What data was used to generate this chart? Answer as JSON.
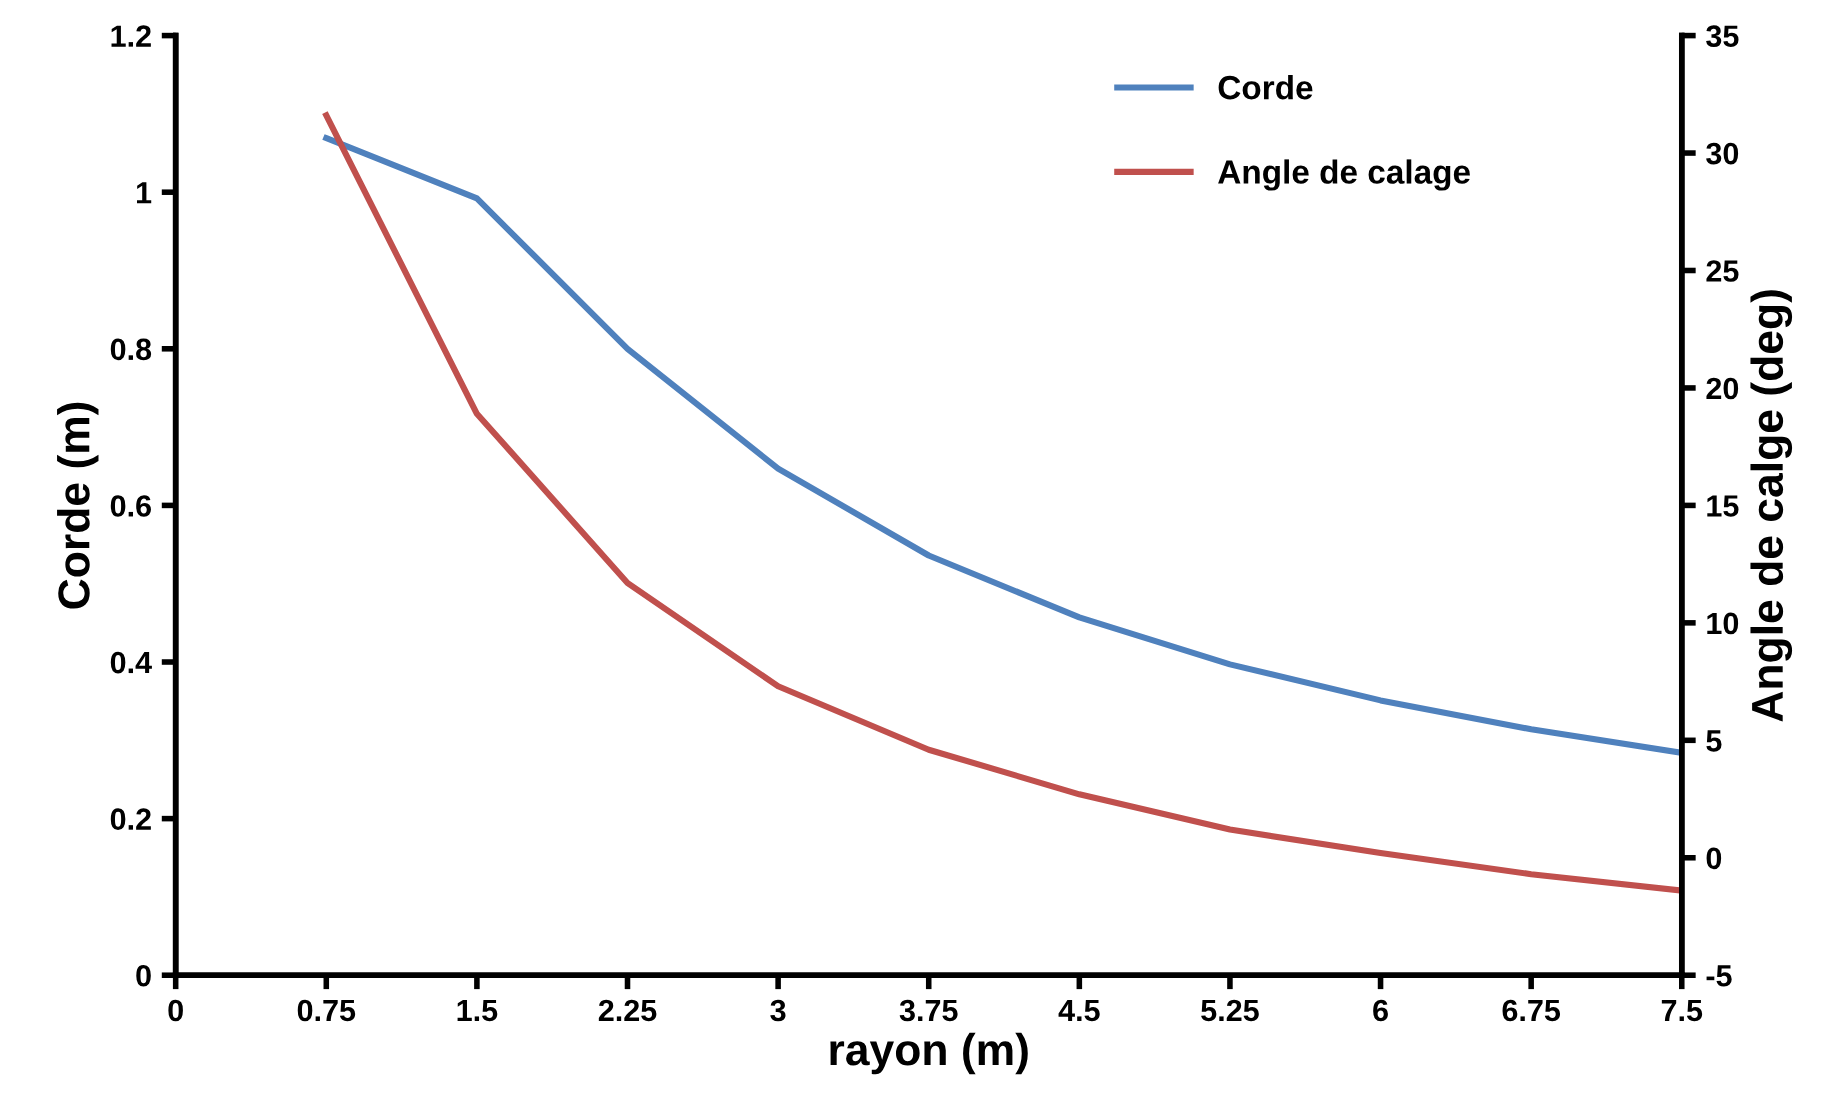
{
  "chart_data": {
    "type": "line",
    "xlabel": "rayon (m)",
    "ylabel": "Corde (m)",
    "y2label": "Angle de calge (deg)",
    "x": [
      0.75,
      1.5,
      2.25,
      3,
      3.75,
      4.5,
      5.25,
      6,
      6.75,
      7.5
    ],
    "series": [
      {
        "name": "Corde",
        "color": "#4f81bd",
        "values": [
          1.069,
          0.992,
          0.8,
          0.647,
          0.536,
          0.457,
          0.397,
          0.351,
          0.314,
          0.284
        ]
      },
      {
        "name": "Angle de calage",
        "color": "#c0504d",
        "axis": "y2",
        "values": [
          31.6,
          18.9,
          11.7,
          7.3,
          4.6,
          2.7,
          1.2,
          0.2,
          -0.7,
          -1.4
        ]
      }
    ],
    "xlim": [
      0,
      7.5
    ],
    "xticks": [
      0,
      0.75,
      1.5,
      2.25,
      3,
      3.75,
      4.5,
      5.25,
      6,
      6.75,
      7.5
    ],
    "ylim": [
      0,
      1.2
    ],
    "yticks": [
      0,
      0.2,
      0.4,
      0.6,
      0.8,
      1,
      1.2
    ],
    "y2lim": [
      -5,
      35
    ],
    "y2ticks": [
      -5,
      0,
      5,
      10,
      15,
      20,
      25,
      30,
      35
    ],
    "legend": "top right",
    "grid": false,
    "marker": "none",
    "line_style": "solid"
  }
}
